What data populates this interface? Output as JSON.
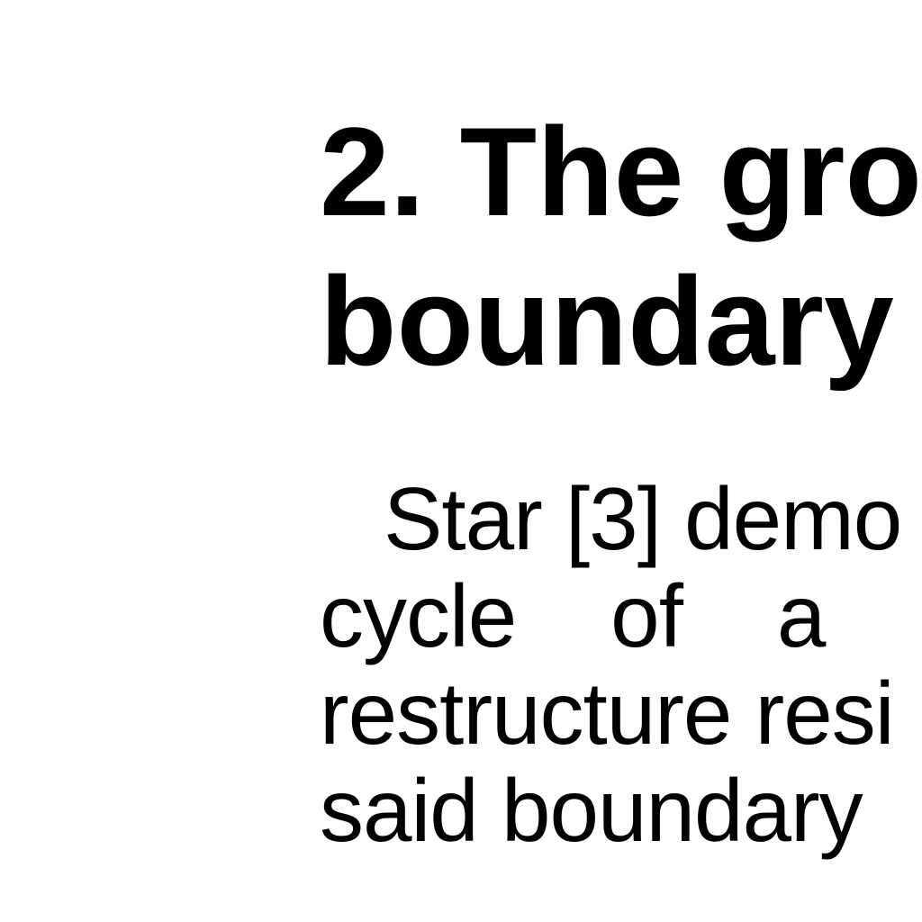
{
  "section": {
    "heading_lines": [
      "2. The gro",
      "boundary"
    ],
    "paragraph_lines": [
      "Star [3] demo",
      "cycle    of    a    s",
      "restructure resi",
      "said boundary"
    ]
  },
  "colors": {
    "background": "#ffffff",
    "text": "#000000"
  }
}
